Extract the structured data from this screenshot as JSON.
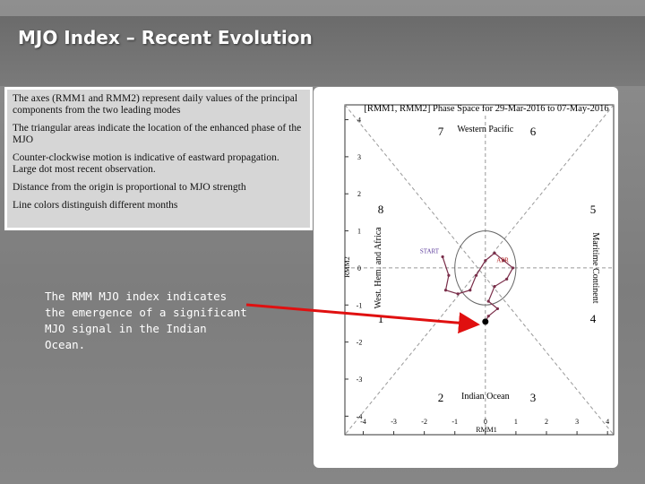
{
  "slide": {
    "title": "MJO Index – Recent Evolution",
    "notes": [
      "The axes (RMM1 and RMM2) represent daily values of the principal components from the two leading modes",
      "The triangular areas indicate the location of the enhanced phase of the MJO",
      "Counter-clockwise motion is indicative of eastward propagation. Large dot most recent observation.",
      "Distance from the origin is proportional to MJO strength",
      "Line colors distinguish different months"
    ],
    "callout": "The RMM MJO index indicates the emergence of a significant MJO signal in the Indian Ocean."
  },
  "chart_data": {
    "type": "line",
    "title": "[RMM1, RMM2] Phase Space for 29-Mar-2016 to 07-May-2016",
    "x_label": "RMM1",
    "y_label": "RMM2",
    "xlim": [
      -4.6,
      4.2
    ],
    "ylim": [
      -4.5,
      4.4
    ],
    "xticks": [
      -4,
      -3,
      -2,
      -1,
      0,
      1,
      2,
      3,
      4
    ],
    "yticks": [
      -4,
      -3,
      -2,
      -1,
      0,
      1,
      2,
      3,
      4
    ],
    "phase_labels": [
      "1",
      "2",
      "3",
      "4",
      "5",
      "6",
      "7",
      "8"
    ],
    "regions": [
      "Western Pacific",
      "Indian Ocean",
      "West. Hem. and Africa",
      "Maritime Continent"
    ],
    "annotations": [
      "START",
      "APR"
    ],
    "color": "#7a2e4a",
    "x": [
      -1.4,
      -1.2,
      -1.3,
      -0.9,
      -0.5,
      -0.3,
      0.0,
      0.3,
      0.6,
      0.9,
      0.7,
      0.3,
      0.1,
      0.4,
      0.1,
      0.0
    ],
    "values": [
      0.3,
      -0.2,
      -0.6,
      -0.7,
      -0.6,
      -0.2,
      0.2,
      0.4,
      0.2,
      0.0,
      -0.3,
      -0.5,
      -0.9,
      -1.1,
      -1.3,
      -1.45
    ]
  }
}
